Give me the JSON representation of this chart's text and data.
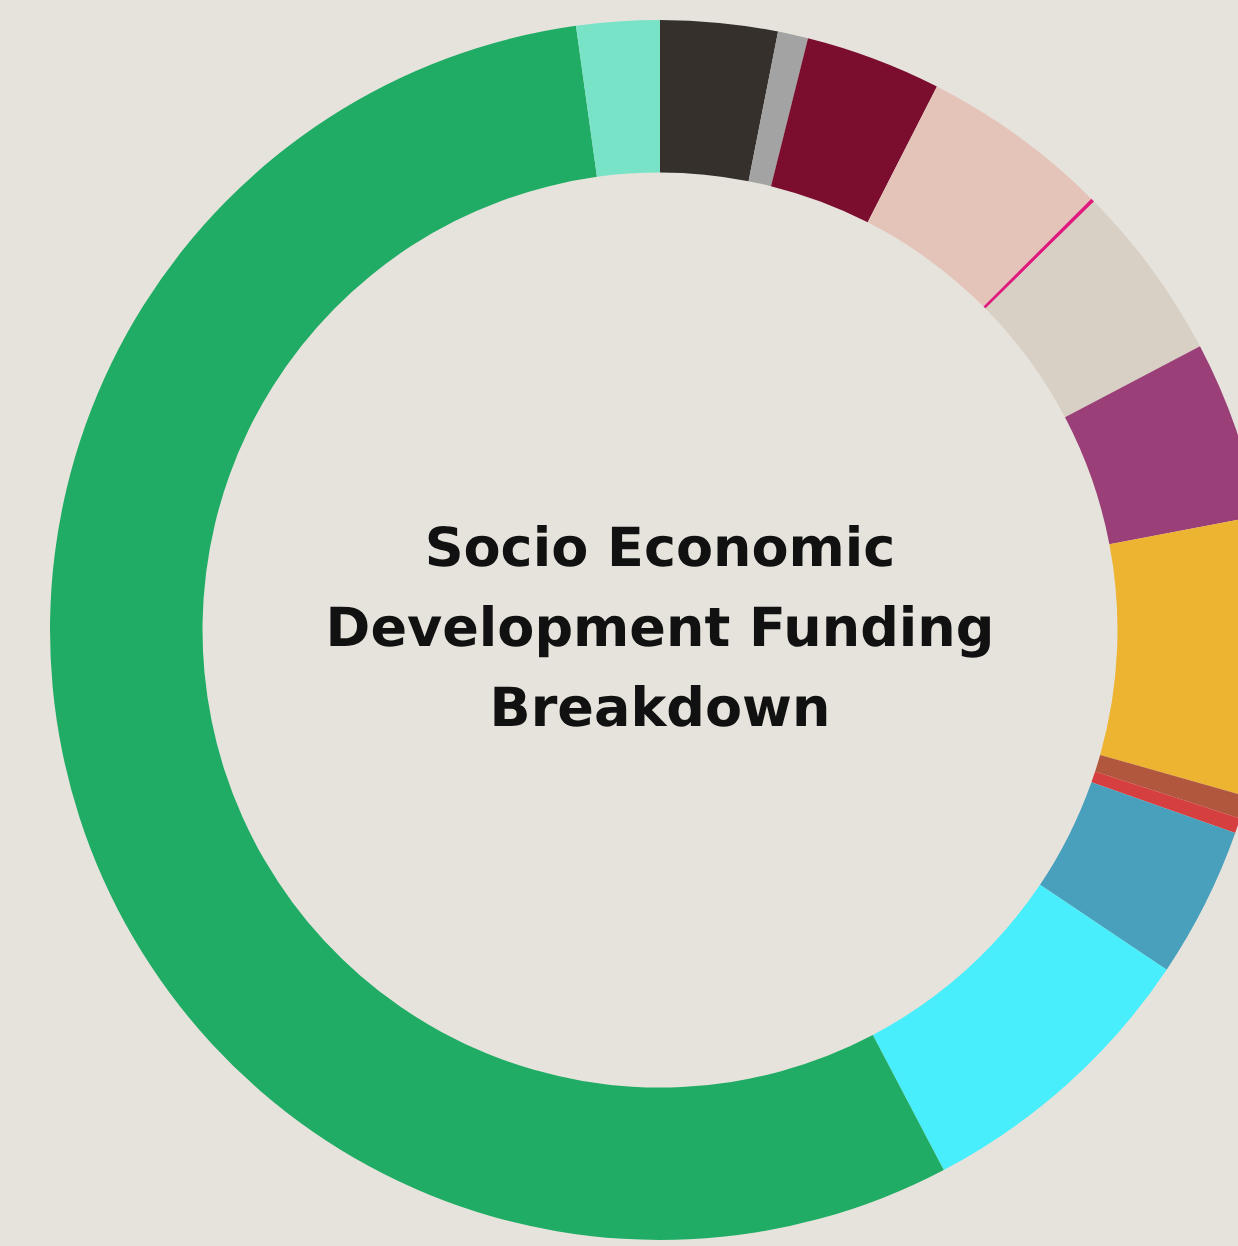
{
  "chart_data": {
    "type": "donut",
    "title": "Socio Economic Development Funding Breakdown",
    "categories": [
      null,
      null,
      null,
      null,
      null,
      null,
      null,
      null,
      null,
      null,
      null,
      null,
      null,
      null
    ],
    "values": [
      3.1,
      0.8,
      3.6,
      5.0,
      0.1,
      4.7,
      4.7,
      7.4,
      0.6,
      0.4,
      4.0,
      7.9,
      55.5,
      2.2
    ],
    "colors": [
      "#35302c",
      "#a3a3a3",
      "#7b0e2e",
      "#e4c3b9",
      "#e0197d",
      "#d8d0c5",
      "#9b3f78",
      "#edb431",
      "#b0573e",
      "#d63f3f",
      "#48a0bd",
      "#48eefb",
      "#20ac64",
      "#78e3c6"
    ],
    "legend": false
  }
}
